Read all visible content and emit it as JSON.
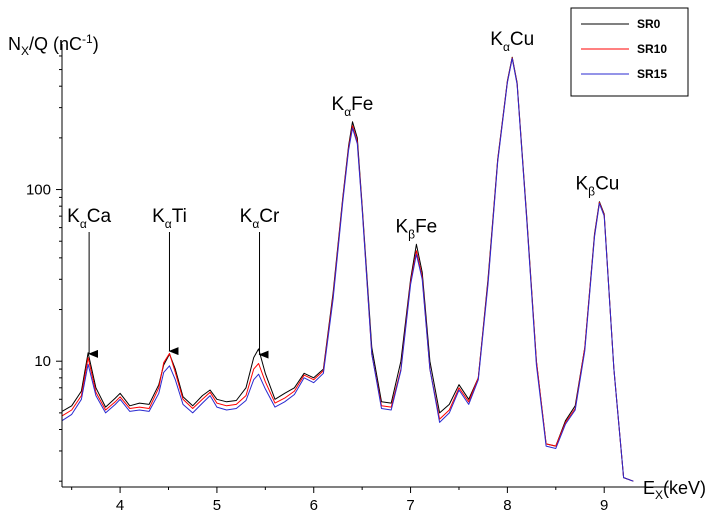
{
  "chart_data": {
    "type": "line",
    "y_scale": "log",
    "xlim": [
      3.4,
      9.38
    ],
    "ylim": [
      1.85,
      650
    ],
    "x_ticks": [
      4,
      5,
      6,
      7,
      8,
      9
    ],
    "x_tick_labels": [
      "4",
      "5",
      "6",
      "7",
      "8",
      "9"
    ],
    "y_ticks": [
      10,
      100
    ],
    "y_tick_labels": [
      "10",
      "100"
    ],
    "ylabel": {
      "main": "N",
      "sub": "X",
      "rest": "/Q (nC",
      "sup": "-1",
      "end": ")"
    },
    "xlabel": {
      "main": "E",
      "sub": "X",
      "rest": "(keV)"
    },
    "legend": {
      "position": "top-right"
    },
    "colors": {
      "SR0": "#000000",
      "SR10": "#ff0000",
      "SR15": "#2a2ad0"
    },
    "series": [
      {
        "name": "SR0",
        "x": [
          3.4,
          3.5,
          3.6,
          3.67,
          3.75,
          3.85,
          3.95,
          4.0,
          4.1,
          4.2,
          4.3,
          4.4,
          4.45,
          4.51,
          4.57,
          4.65,
          4.75,
          4.85,
          4.93,
          5.0,
          5.1,
          5.2,
          5.3,
          5.38,
          5.43,
          5.5,
          5.6,
          5.7,
          5.8,
          5.9,
          6.0,
          6.1,
          6.2,
          6.3,
          6.36,
          6.4,
          6.45,
          6.5,
          6.6,
          6.7,
          6.8,
          6.9,
          7.0,
          7.06,
          7.12,
          7.2,
          7.3,
          7.4,
          7.5,
          7.6,
          7.7,
          7.8,
          7.9,
          8.0,
          8.05,
          8.1,
          8.2,
          8.3,
          8.4,
          8.5,
          8.6,
          8.7,
          8.8,
          8.9,
          8.95,
          9.0,
          9.1,
          9.2,
          9.3
        ],
        "y": [
          5.1,
          5.5,
          6.7,
          11.2,
          7.0,
          5.4,
          6.1,
          6.5,
          5.5,
          5.7,
          5.6,
          7.3,
          9.5,
          11.0,
          9.0,
          6.2,
          5.5,
          6.3,
          6.8,
          6.0,
          5.8,
          5.9,
          7.0,
          10.5,
          11.8,
          8.5,
          6.0,
          6.5,
          7.0,
          8.5,
          8.0,
          9.0,
          25,
          90,
          180,
          248,
          200,
          80,
          12,
          5.8,
          5.7,
          10,
          30,
          48,
          33,
          10,
          5.0,
          5.6,
          7.3,
          6.0,
          8,
          30,
          150,
          430,
          590,
          420,
          70,
          10,
          3.3,
          3.2,
          4.5,
          5.5,
          12,
          55,
          85,
          72,
          9,
          2.1,
          2.0
        ]
      },
      {
        "name": "SR10",
        "x": [
          3.4,
          3.5,
          3.6,
          3.67,
          3.75,
          3.85,
          3.95,
          4.0,
          4.1,
          4.2,
          4.3,
          4.4,
          4.45,
          4.51,
          4.57,
          4.65,
          4.75,
          4.85,
          4.93,
          5.0,
          5.1,
          5.2,
          5.3,
          5.38,
          5.43,
          5.5,
          5.6,
          5.7,
          5.8,
          5.9,
          6.0,
          6.1,
          6.2,
          6.3,
          6.36,
          6.4,
          6.45,
          6.5,
          6.6,
          6.7,
          6.8,
          6.9,
          7.0,
          7.06,
          7.12,
          7.2,
          7.3,
          7.4,
          7.5,
          7.6,
          7.7,
          7.8,
          7.9,
          8.0,
          8.05,
          8.1,
          8.2,
          8.3,
          8.4,
          8.5,
          8.6,
          8.7,
          8.8,
          8.9,
          8.95,
          9.0,
          9.1,
          9.2,
          9.3
        ],
        "y": [
          4.8,
          5.2,
          6.3,
          10.5,
          6.6,
          5.2,
          5.8,
          6.2,
          5.3,
          5.4,
          5.3,
          7.0,
          9.8,
          11.1,
          8.6,
          6.0,
          5.3,
          6.0,
          6.6,
          5.7,
          5.5,
          5.6,
          6.3,
          9.0,
          9.7,
          7.6,
          5.7,
          6.1,
          6.7,
          8.3,
          7.8,
          8.8,
          24,
          88,
          175,
          235,
          190,
          78,
          11,
          5.5,
          5.4,
          9,
          29,
          44,
          31,
          9,
          4.6,
          5.2,
          7.0,
          5.8,
          8,
          29,
          148,
          425,
          585,
          415,
          68,
          10,
          3.3,
          3.2,
          4.4,
          5.3,
          12,
          54,
          84,
          71,
          9,
          2.1,
          2.0
        ]
      },
      {
        "name": "SR15",
        "x": [
          3.4,
          3.5,
          3.6,
          3.67,
          3.75,
          3.85,
          3.95,
          4.0,
          4.1,
          4.2,
          4.3,
          4.4,
          4.45,
          4.51,
          4.57,
          4.65,
          4.75,
          4.85,
          4.93,
          5.0,
          5.1,
          5.2,
          5.3,
          5.38,
          5.43,
          5.5,
          5.6,
          5.7,
          5.8,
          5.9,
          6.0,
          6.1,
          6.2,
          6.3,
          6.36,
          6.4,
          6.45,
          6.5,
          6.6,
          6.7,
          6.8,
          6.9,
          7.0,
          7.06,
          7.12,
          7.2,
          7.3,
          7.4,
          7.5,
          7.6,
          7.7,
          7.8,
          7.9,
          8.0,
          8.05,
          8.1,
          8.2,
          8.3,
          8.4,
          8.5,
          8.6,
          8.7,
          8.8,
          8.9,
          8.95,
          9.0,
          9.1,
          9.2,
          9.3
        ],
        "y": [
          4.5,
          4.9,
          6.0,
          9.6,
          6.3,
          5.0,
          5.6,
          6.0,
          5.1,
          5.2,
          5.1,
          6.5,
          8.6,
          9.4,
          7.8,
          5.6,
          5.0,
          5.7,
          6.3,
          5.4,
          5.2,
          5.3,
          5.9,
          7.8,
          8.4,
          6.9,
          5.4,
          5.8,
          6.4,
          8.0,
          7.5,
          8.5,
          23,
          85,
          170,
          228,
          185,
          76,
          11,
          5.3,
          5.2,
          8.8,
          28,
          42,
          30,
          9,
          4.4,
          5.0,
          6.8,
          5.6,
          7.8,
          28,
          145,
          420,
          580,
          410,
          67,
          9.5,
          3.2,
          3.1,
          4.3,
          5.2,
          11.5,
          53,
          83,
          70,
          9,
          2.1,
          2.0
        ]
      }
    ],
    "annotations": [
      {
        "main": "K",
        "sub": "α",
        "rest": "Ca",
        "x": 3.68,
        "y": 10.6,
        "arrow": true
      },
      {
        "main": "K",
        "sub": "α",
        "rest": "Ti",
        "x": 4.51,
        "y": 11.0,
        "arrow": true
      },
      {
        "main": "K",
        "sub": "α",
        "rest": "Cr",
        "x": 5.44,
        "y": 10.5,
        "arrow": true
      },
      {
        "main": "K",
        "sub": "α",
        "rest": "Fe",
        "x": 6.4,
        "y": 248,
        "arrow": false
      },
      {
        "main": "K",
        "sub": "β",
        "rest": "Fe",
        "x": 7.06,
        "y": 48,
        "arrow": false
      },
      {
        "main": "K",
        "sub": "α",
        "rest": "Cu",
        "x": 8.05,
        "y": 590,
        "arrow": false
      },
      {
        "main": "K",
        "sub": "β",
        "rest": "Cu",
        "x": 8.93,
        "y": 85,
        "arrow": false
      }
    ]
  }
}
